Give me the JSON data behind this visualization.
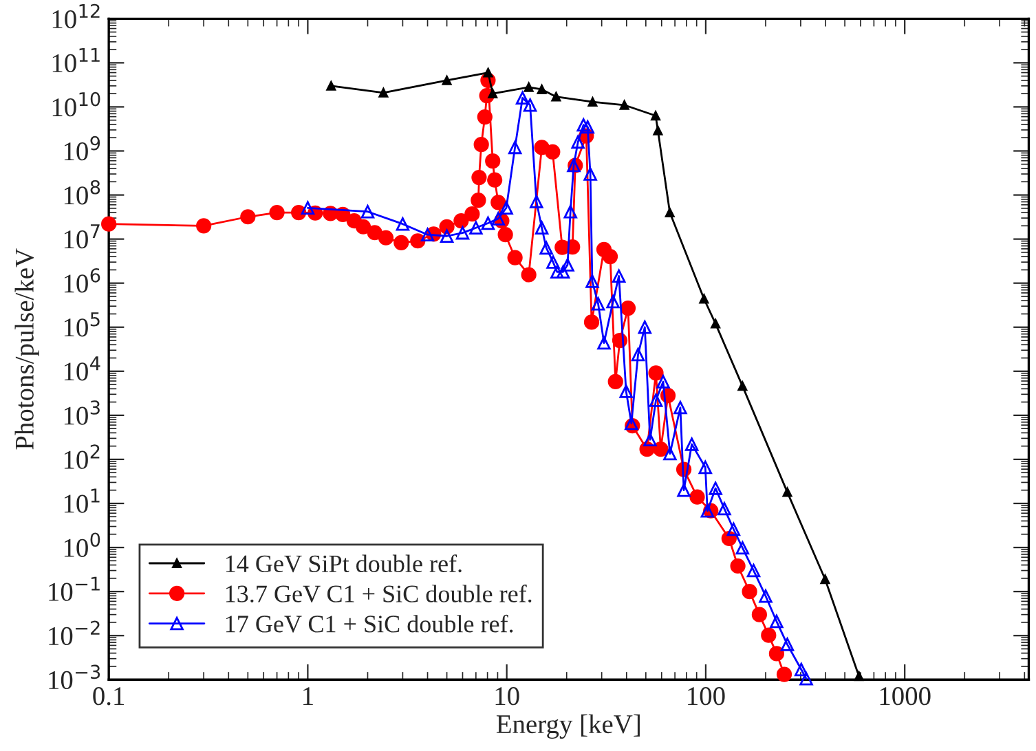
{
  "chart_data": {
    "type": "line",
    "xlabel": "Energy [keV]",
    "ylabel": "Photons/pulse/keV",
    "log": "xy",
    "grid": false,
    "legend": "bottom left",
    "xlim": [
      0.1,
      4200
    ],
    "xticks": [
      0.1,
      1,
      10,
      100,
      1000
    ],
    "ylim": [
      0.001,
      1000000000000.0
    ],
    "yticks": [
      {
        "value": 0.001,
        "label": "10$^{−3}$"
      },
      {
        "value": 0.01,
        "label": "10$^{−2}$"
      },
      {
        "value": 0.1,
        "label": "10$^{−1}$"
      },
      {
        "value": 1,
        "label": "10$^{0}$"
      },
      {
        "value": 10,
        "label": "10$^{1}$"
      },
      {
        "value": 100,
        "label": "10$^{2}$"
      },
      {
        "value": 1000.0,
        "label": "10$^{3}$"
      },
      {
        "value": 10000.0,
        "label": "10$^{4}$"
      },
      {
        "value": 100000.0,
        "label": "10$^{5}$"
      },
      {
        "value": 1000000.0,
        "label": "10$^{6}$"
      },
      {
        "value": 10000000.0,
        "label": "10$^{7}$"
      },
      {
        "value": 100000000.0,
        "label": "10$^{8}$"
      },
      {
        "value": 1000000000.0,
        "label": "10$^{9}$"
      },
      {
        "value": 10000000000.0,
        "label": "10$^{10}$"
      },
      {
        "value": 100000000000.0,
        "label": "10$^{11}$"
      },
      {
        "value": 1000000000000.0,
        "label": "10$^{12}$"
      }
    ],
    "series": [
      {
        "name": "14 GeV SiPt double ref.",
        "color": "#000000",
        "marker": "triangle",
        "x": [
          1.31,
          2.4,
          5.0,
          8.06,
          8.5,
          12.9,
          15,
          17.7,
          27,
          39,
          56,
          57.5,
          66,
          98,
          112,
          153,
          257,
          398,
          589
        ],
        "values": [
          30000000000.0,
          21000000000.0,
          40000000000.0,
          60000000000.0,
          20000000000.0,
          28000000000.0,
          25000000000.0,
          17000000000.0,
          13000000000.0,
          11000000000.0,
          6300000000.0,
          2900000000.0,
          40000000.0,
          440000.0,
          120000.0,
          4600.0,
          18,
          0.19,
          0.0012
        ]
      },
      {
        "name": "13.7 GeV C1 + SiC double ref.",
        "color": "#ff0000",
        "marker": "circle",
        "x": [
          0.1,
          0.3,
          0.5,
          0.7,
          0.9,
          1.09,
          1.3,
          1.5,
          1.71,
          1.9,
          2.17,
          2.47,
          2.95,
          3.57,
          4.29,
          5.0,
          5.9,
          6.7,
          7.2,
          7.26,
          7.45,
          7.76,
          7.94,
          8.05,
          8.5,
          8.7,
          9.06,
          9.44,
          9.84,
          11.0,
          12.9,
          15.0,
          17.0,
          19.0,
          21.4,
          22.1,
          25.1,
          26.7,
          30.8,
          33.1,
          35.2,
          37.0,
          40.7,
          42.8,
          50.7,
          56.2,
          59.4,
          64.6,
          77.6,
          90.6,
          106,
          131,
          145,
          166,
          186,
          207,
          227,
          248
        ],
        "values": [
          22000000.0,
          20000000.0,
          32000000.0,
          40000000.0,
          40000000.0,
          39000000.0,
          38000000.0,
          36000000.0,
          26000000.0,
          19000000.0,
          14000000.0,
          10700000.0,
          8300000.0,
          9100000.0,
          13000000.0,
          19000000.0,
          26000000.0,
          37000000.0,
          76000000.0,
          250000000.0,
          1400000000.0,
          5900000000.0,
          18000000000.0,
          40000000000.0,
          590000000.0,
          220000000.0,
          68000000.0,
          26000000.0,
          12600000.0,
          3800000.0,
          1550000.0,
          1200000000.0,
          950000000.0,
          6500000.0,
          6600000.0,
          470000000.0,
          2200000000.0,
          130000.0,
          5800000.0,
          4000000.0,
          5800.0,
          50000.0,
          270000.0,
          580,
          170,
          9100,
          170,
          2800,
          59,
          14,
          6.8,
          1.6,
          0.38,
          0.1,
          0.03,
          0.0102,
          0.0039,
          0.00132
        ]
      },
      {
        "name": "17 GeV C1 + SiC double ref.",
        "color": "#0000ff",
        "marker": "triangle",
        "x": [
          1.0,
          2.0,
          3.0,
          4.0,
          5.0,
          6.0,
          7.0,
          8.05,
          9.06,
          9.95,
          11.0,
          12.0,
          13.1,
          14.1,
          15.0,
          15.8,
          17.1,
          17.9,
          19.2,
          20.2,
          20.9,
          21.7,
          22.8,
          24.3,
          25.5,
          26.3,
          26.9,
          28.8,
          30.8,
          34.2,
          36.6,
          39.8,
          42.3,
          45.7,
          49.4,
          52.5,
          56.2,
          61.1,
          66.1,
          74.5,
          77.6,
          85.1,
          99.5,
          102,
          112,
          124,
          138,
          153,
          174,
          200,
          227,
          257,
          302,
          320
        ],
        "values": [
          51000000.0,
          42000000.0,
          22000000.0,
          12600000.0,
          11700000.0,
          13800000.0,
          18000000.0,
          23000000.0,
          29000000.0,
          51000000.0,
          1200000000.0,
          16000000000.0,
          11000000000.0,
          71000000.0,
          18000000.0,
          6300000.0,
          3000000.0,
          1800000.0,
          1800000.0,
          2600000.0,
          42000000.0,
          470000000.0,
          1600000000.0,
          3900000000.0,
          3500000000.0,
          300000000.0,
          1100000.0,
          340000.0,
          44000.0,
          380000.0,
          1450000.0,
          3500,
          660,
          24000.0,
          100000.0,
          280,
          2200,
          5800,
          135,
          1500,
          20,
          220,
          66,
          6.8,
          22,
          7.6,
          2.6,
          0.98,
          0.3,
          0.079,
          0.021,
          0.0063,
          0.0017,
          0.00105
        ]
      }
    ]
  }
}
